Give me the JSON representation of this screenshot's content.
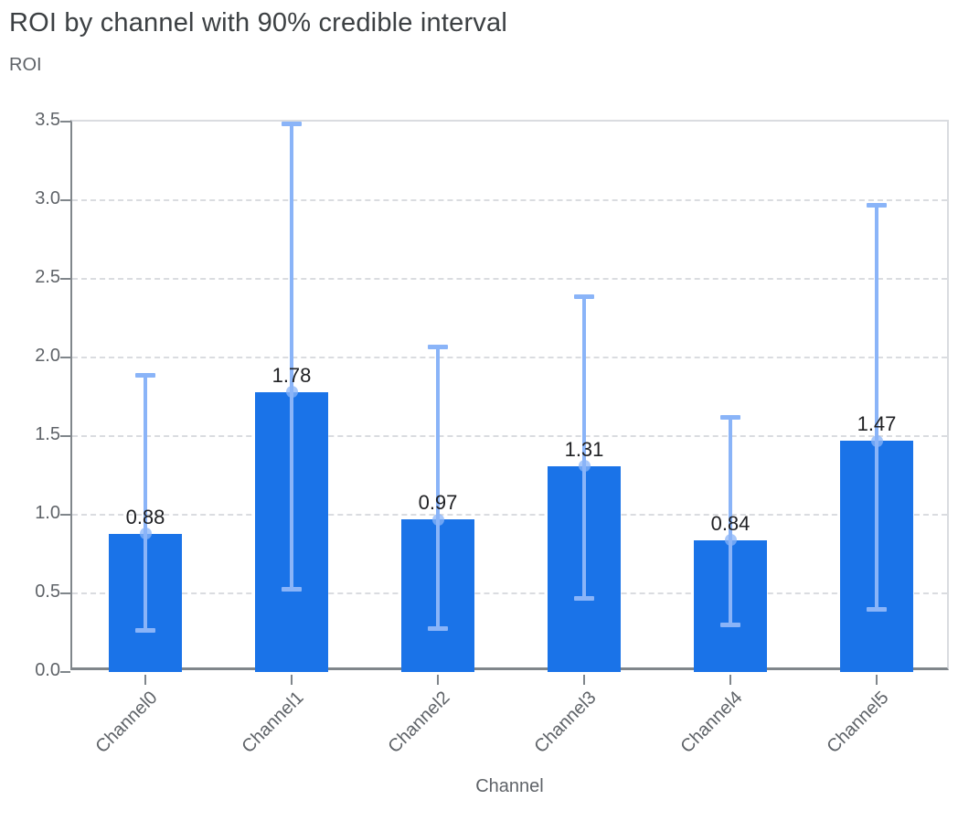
{
  "header": {
    "title": "ROI by channel with 90% credible interval"
  },
  "chart_data": {
    "type": "bar",
    "title": "ROI by channel with 90% credible interval",
    "ylabel": "ROI",
    "xlabel": "Channel",
    "categories": [
      "Channel0",
      "Channel1",
      "Channel2",
      "Channel3",
      "Channel4",
      "Channel5"
    ],
    "series": [
      {
        "name": "ROI mean",
        "values": [
          0.88,
          1.78,
          0.97,
          1.31,
          0.84,
          1.47
        ]
      },
      {
        "name": "90% credible interval lower",
        "values": [
          0.27,
          0.53,
          0.28,
          0.47,
          0.3,
          0.4
        ]
      },
      {
        "name": "90% credible interval upper",
        "values": [
          1.89,
          3.49,
          2.07,
          2.39,
          1.62,
          2.97
        ]
      }
    ],
    "bar_labels": [
      "0.88",
      "1.78",
      "0.97",
      "1.31",
      "0.84",
      "1.47"
    ],
    "ylim": [
      0,
      3.5
    ],
    "yticks": [
      0,
      0.5,
      1,
      1.5,
      2,
      2.5,
      3,
      3.5
    ],
    "ytick_labels": [
      "0.0",
      "0.5",
      "1.0",
      "1.5",
      "2.0",
      "2.5",
      "3.0",
      "3.5"
    ],
    "grid": true,
    "legend": "none",
    "colors": {
      "bar": "#1a73e8",
      "error_bar": "#8ab4f8",
      "marker": "rgba(138,180,248,0.75)",
      "grid": "#dadce0",
      "axis": "#80868b",
      "title": "#3c4043",
      "axis_label": "#5f6368",
      "value_label": "#202124",
      "background": "#ffffff"
    }
  }
}
